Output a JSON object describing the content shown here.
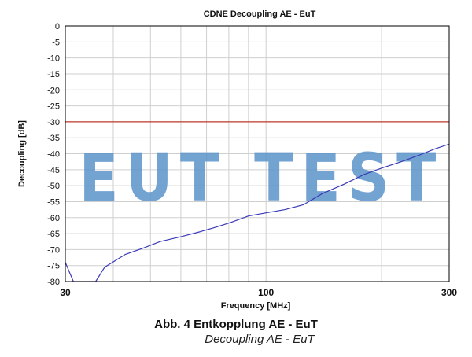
{
  "chart_data": {
    "type": "line",
    "title": "CDNE Decoupling AE - EuT",
    "xlabel": "Frequency [MHz]",
    "ylabel": "Decoupling [dB]",
    "x_scale": "log",
    "xlim": [
      30,
      300
    ],
    "ylim": [
      -80,
      0
    ],
    "x_tick_labels": [
      {
        "value": 30,
        "label": "30"
      },
      {
        "value": 100,
        "label": "100"
      },
      {
        "value": 300,
        "label": "300"
      }
    ],
    "x_gridlines": [
      30,
      40,
      50,
      60,
      70,
      80,
      90,
      100,
      200,
      300
    ],
    "y_ticks": [
      0,
      -5,
      -10,
      -15,
      -20,
      -25,
      -30,
      -35,
      -40,
      -45,
      -50,
      -55,
      -60,
      -65,
      -70,
      -75,
      -80
    ],
    "grid": true,
    "series": [
      {
        "color": "#3a3ab8",
        "x": [
          30,
          31.5,
          36,
          38,
          43,
          48,
          53,
          60,
          67,
          74,
          81,
          90,
          100,
          112,
          125,
          140,
          160,
          180,
          200,
          225,
          250,
          275,
          300
        ],
        "y": [
          -74,
          -80,
          -80,
          -75.5,
          -71.5,
          -69.5,
          -67.5,
          -66,
          -64.5,
          -63,
          -61.5,
          -59.5,
          -58.5,
          -57.5,
          -56,
          -52.5,
          -49.5,
          -46.5,
          -44.5,
          -42.5,
          -40.5,
          -38.5,
          -37
        ]
      },
      {
        "color": "#c0392b",
        "x": [
          30,
          300
        ],
        "y": [
          -30,
          -30
        ]
      }
    ],
    "watermark": "EUT TEST"
  },
  "caption": {
    "line1": "Abb. 4 Entkopplung AE - EuT",
    "line2": "Decoupling AE - EuT"
  },
  "colors": {
    "watermark": "#5b93c9",
    "grid": "#cfcfcf",
    "axis": "#000000"
  }
}
